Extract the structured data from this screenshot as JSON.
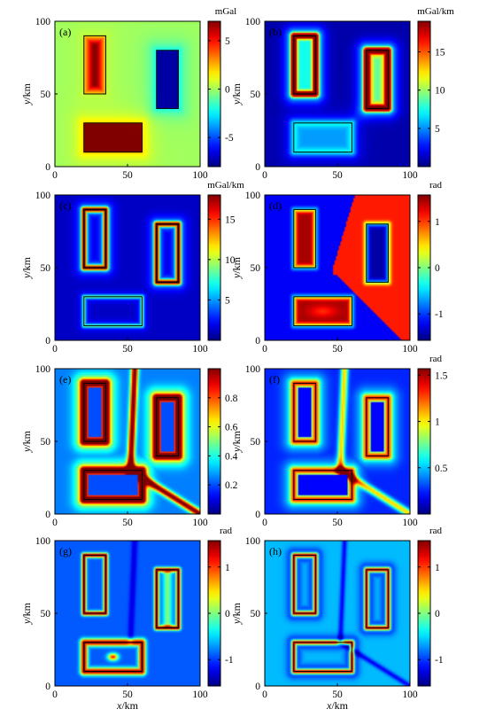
{
  "chart_data": [
    {
      "type": "heatmap",
      "label": "(a)",
      "unit": "mGal",
      "cmin": -8,
      "cmax": 7,
      "cticks": [
        5,
        0,
        -5
      ],
      "field": "a",
      "xlim": [
        0,
        100
      ],
      "ylim": [
        0,
        100
      ],
      "xticks": [
        0,
        50,
        100
      ],
      "yticks": [
        0,
        50,
        100
      ],
      "ylabel": "y/km",
      "xlabel": "",
      "rects": [
        {
          "x": [
            20,
            35
          ],
          "y": [
            50,
            90
          ]
        },
        {
          "x": [
            70,
            85
          ],
          "y": [
            40,
            80
          ]
        },
        {
          "x": [
            20,
            60
          ],
          "y": [
            10,
            30
          ]
        }
      ]
    },
    {
      "type": "heatmap",
      "label": "(b)",
      "unit": "mGal/km",
      "cmin": 0,
      "cmax": 19,
      "cticks": [
        15,
        10,
        5
      ],
      "field": "b",
      "xlim": [
        0,
        100
      ],
      "ylim": [
        0,
        100
      ],
      "xticks": [
        0,
        50,
        100
      ],
      "yticks": [
        0,
        50,
        100
      ],
      "ylabel": "y/km",
      "xlabel": "",
      "rects": [
        {
          "x": [
            20,
            35
          ],
          "y": [
            50,
            90
          ]
        },
        {
          "x": [
            70,
            85
          ],
          "y": [
            40,
            80
          ]
        },
        {
          "x": [
            20,
            60
          ],
          "y": [
            10,
            30
          ]
        }
      ]
    },
    {
      "type": "heatmap",
      "label": "(c)",
      "unit": "mGal/km",
      "cmin": 0,
      "cmax": 18,
      "cticks": [
        15,
        10,
        5
      ],
      "field": "c",
      "xlim": [
        0,
        100
      ],
      "ylim": [
        0,
        100
      ],
      "xticks": [
        0,
        50,
        100
      ],
      "yticks": [
        0,
        50,
        100
      ],
      "ylabel": "y/km",
      "xlabel": "",
      "rects": [
        {
          "x": [
            20,
            35
          ],
          "y": [
            50,
            90
          ]
        },
        {
          "x": [
            70,
            85
          ],
          "y": [
            40,
            80
          ]
        },
        {
          "x": [
            20,
            60
          ],
          "y": [
            10,
            30
          ]
        }
      ]
    },
    {
      "type": "heatmap",
      "label": "(d)",
      "unit": "rad",
      "cmin": -1.57,
      "cmax": 1.57,
      "cticks": [
        1,
        0,
        -1
      ],
      "field": "d",
      "xlim": [
        0,
        100
      ],
      "ylim": [
        0,
        100
      ],
      "xticks": [
        0,
        50,
        100
      ],
      "yticks": [
        0,
        50,
        100
      ],
      "ylabel": "y/km",
      "xlabel": "",
      "rects": [
        {
          "x": [
            20,
            35
          ],
          "y": [
            50,
            90
          ]
        },
        {
          "x": [
            70,
            85
          ],
          "y": [
            40,
            80
          ]
        },
        {
          "x": [
            20,
            60
          ],
          "y": [
            10,
            30
          ]
        }
      ]
    },
    {
      "type": "heatmap",
      "label": "(e)",
      "unit": "",
      "cmin": 0,
      "cmax": 1.0,
      "cticks": [
        0.8,
        0.6,
        0.4,
        0.2
      ],
      "field": "e",
      "xlim": [
        0,
        100
      ],
      "ylim": [
        0,
        100
      ],
      "xticks": [
        0,
        50,
        100
      ],
      "yticks": [
        0,
        50,
        100
      ],
      "ylabel": "y/km",
      "xlabel": "",
      "rects": [
        {
          "x": [
            20,
            35
          ],
          "y": [
            50,
            90
          ]
        },
        {
          "x": [
            70,
            85
          ],
          "y": [
            40,
            80
          ]
        },
        {
          "x": [
            20,
            60
          ],
          "y": [
            10,
            30
          ]
        }
      ]
    },
    {
      "type": "heatmap",
      "label": "(f)",
      "unit": "rad",
      "cmin": 0,
      "cmax": 1.57,
      "cticks": [
        1.5,
        1,
        0.5
      ],
      "field": "e",
      "xlim": [
        0,
        100
      ],
      "ylim": [
        0,
        100
      ],
      "xticks": [
        0,
        50,
        100
      ],
      "yticks": [
        0,
        50,
        100
      ],
      "ylabel": "y/km",
      "xlabel": "",
      "rects": [
        {
          "x": [
            20,
            35
          ],
          "y": [
            50,
            90
          ]
        },
        {
          "x": [
            70,
            85
          ],
          "y": [
            40,
            80
          ]
        },
        {
          "x": [
            20,
            60
          ],
          "y": [
            10,
            30
          ]
        }
      ]
    },
    {
      "type": "heatmap",
      "label": "(g)",
      "unit": "rad",
      "cmin": -1.57,
      "cmax": 1.57,
      "cticks": [
        1,
        0,
        -1
      ],
      "field": "g",
      "xlim": [
        0,
        100
      ],
      "ylim": [
        0,
        100
      ],
      "xticks": [
        0,
        50,
        100
      ],
      "yticks": [
        0,
        50,
        100
      ],
      "ylabel": "y/km",
      "xlabel": "x/km",
      "rects": [
        {
          "x": [
            20,
            35
          ],
          "y": [
            50,
            90
          ]
        },
        {
          "x": [
            70,
            85
          ],
          "y": [
            40,
            80
          ]
        },
        {
          "x": [
            20,
            60
          ],
          "y": [
            10,
            30
          ]
        }
      ]
    },
    {
      "type": "heatmap",
      "label": "(h)",
      "unit": "rad",
      "cmin": -1.57,
      "cmax": 1.57,
      "cticks": [
        1,
        0,
        -1
      ],
      "field": "h",
      "xlim": [
        0,
        100
      ],
      "ylim": [
        0,
        100
      ],
      "xticks": [
        0,
        50,
        100
      ],
      "yticks": [
        0,
        50,
        100
      ],
      "ylabel": "y/km",
      "xlabel": "x/km",
      "rects": [
        {
          "x": [
            20,
            35
          ],
          "y": [
            50,
            90
          ]
        },
        {
          "x": [
            70,
            85
          ],
          "y": [
            40,
            80
          ]
        },
        {
          "x": [
            20,
            60
          ],
          "y": [
            10,
            30
          ]
        }
      ]
    }
  ]
}
